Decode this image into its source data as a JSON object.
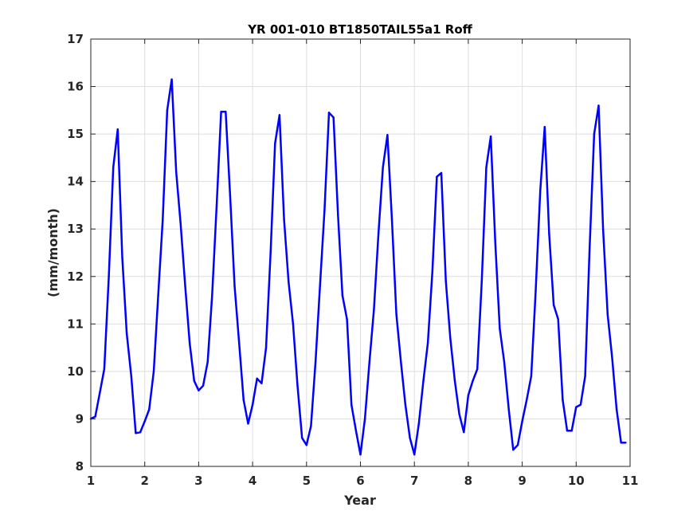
{
  "chart_data": {
    "type": "line",
    "title": "YR 001-010 BT1850TAIL55a1 Roff",
    "xlabel": "Year",
    "ylabel": "(mm/month)",
    "xlim": [
      1,
      11
    ],
    "ylim": [
      8,
      17
    ],
    "xticks": [
      "1",
      "2",
      "3",
      "4",
      "5",
      "6",
      "7",
      "8",
      "9",
      "10",
      "11"
    ],
    "yticks": [
      "8",
      "9",
      "10",
      "11",
      "12",
      "13",
      "14",
      "15",
      "16",
      "17"
    ],
    "grid": true,
    "series": [
      {
        "color": "#0000ff",
        "x": [
          1.0,
          1.0833,
          1.1667,
          1.25,
          1.3333,
          1.4167,
          1.5,
          1.5833,
          1.6667,
          1.75,
          1.8333,
          1.9167,
          2.0,
          2.0833,
          2.1667,
          2.25,
          2.3333,
          2.4167,
          2.5,
          2.5833,
          2.6667,
          2.75,
          2.8333,
          2.9167,
          3.0,
          3.0833,
          3.1667,
          3.25,
          3.3333,
          3.4167,
          3.5,
          3.5833,
          3.6667,
          3.75,
          3.8333,
          3.9167,
          4.0,
          4.0833,
          4.1667,
          4.25,
          4.3333,
          4.4167,
          4.5,
          4.5833,
          4.6667,
          4.75,
          4.8333,
          4.9167,
          5.0,
          5.0833,
          5.1667,
          5.25,
          5.3333,
          5.4167,
          5.5,
          5.5833,
          5.6667,
          5.75,
          5.8333,
          5.9167,
          6.0,
          6.0833,
          6.1667,
          6.25,
          6.3333,
          6.4167,
          6.5,
          6.5833,
          6.6667,
          6.75,
          6.8333,
          6.9167,
          7.0,
          7.0833,
          7.1667,
          7.25,
          7.3333,
          7.4167,
          7.5,
          7.5833,
          7.6667,
          7.75,
          7.8333,
          7.9167,
          8.0,
          8.0833,
          8.1667,
          8.25,
          8.3333,
          8.4167,
          8.5,
          8.5833,
          8.6667,
          8.75,
          8.8333,
          8.9167,
          9.0,
          9.0833,
          9.1667,
          9.25,
          9.3333,
          9.4167,
          9.5,
          9.5833,
          9.6667,
          9.75,
          9.8333,
          9.9167,
          10.0,
          10.0833,
          10.1667,
          10.25,
          10.3333,
          10.4167,
          10.5,
          10.5833,
          10.6667,
          10.75,
          10.8333,
          10.9167
        ],
        "y": [
          9.0,
          9.05,
          9.55,
          10.05,
          12.0,
          14.3,
          15.1,
          12.4,
          10.8,
          9.9,
          8.7,
          8.72,
          8.95,
          9.2,
          10.0,
          11.6,
          13.2,
          15.5,
          16.15,
          14.2,
          13.1,
          11.8,
          10.6,
          9.8,
          9.6,
          9.7,
          10.2,
          11.6,
          13.5,
          15.47,
          15.47,
          13.7,
          11.8,
          10.6,
          9.4,
          8.9,
          9.3,
          9.85,
          9.75,
          10.5,
          12.5,
          14.8,
          15.4,
          13.2,
          11.9,
          11.0,
          9.7,
          8.6,
          8.45,
          8.85,
          10.2,
          11.8,
          13.4,
          15.45,
          15.35,
          13.3,
          11.6,
          11.1,
          9.3,
          8.75,
          8.25,
          9.0,
          10.2,
          11.3,
          12.9,
          14.3,
          14.98,
          13.2,
          11.2,
          10.2,
          9.3,
          8.6,
          8.25,
          8.9,
          9.8,
          10.6,
          12.1,
          14.1,
          14.18,
          11.9,
          10.7,
          9.8,
          9.1,
          8.72,
          9.5,
          9.8,
          10.05,
          11.9,
          14.3,
          14.95,
          12.7,
          10.9,
          10.2,
          9.2,
          8.35,
          8.45,
          8.95,
          9.4,
          9.9,
          11.7,
          13.8,
          15.15,
          12.9,
          11.4,
          11.1,
          9.4,
          8.75,
          8.75,
          9.25,
          9.3,
          9.9,
          12.6,
          15.0,
          15.6,
          13.0,
          11.2,
          10.3,
          9.2,
          8.5,
          8.5
        ]
      }
    ]
  }
}
